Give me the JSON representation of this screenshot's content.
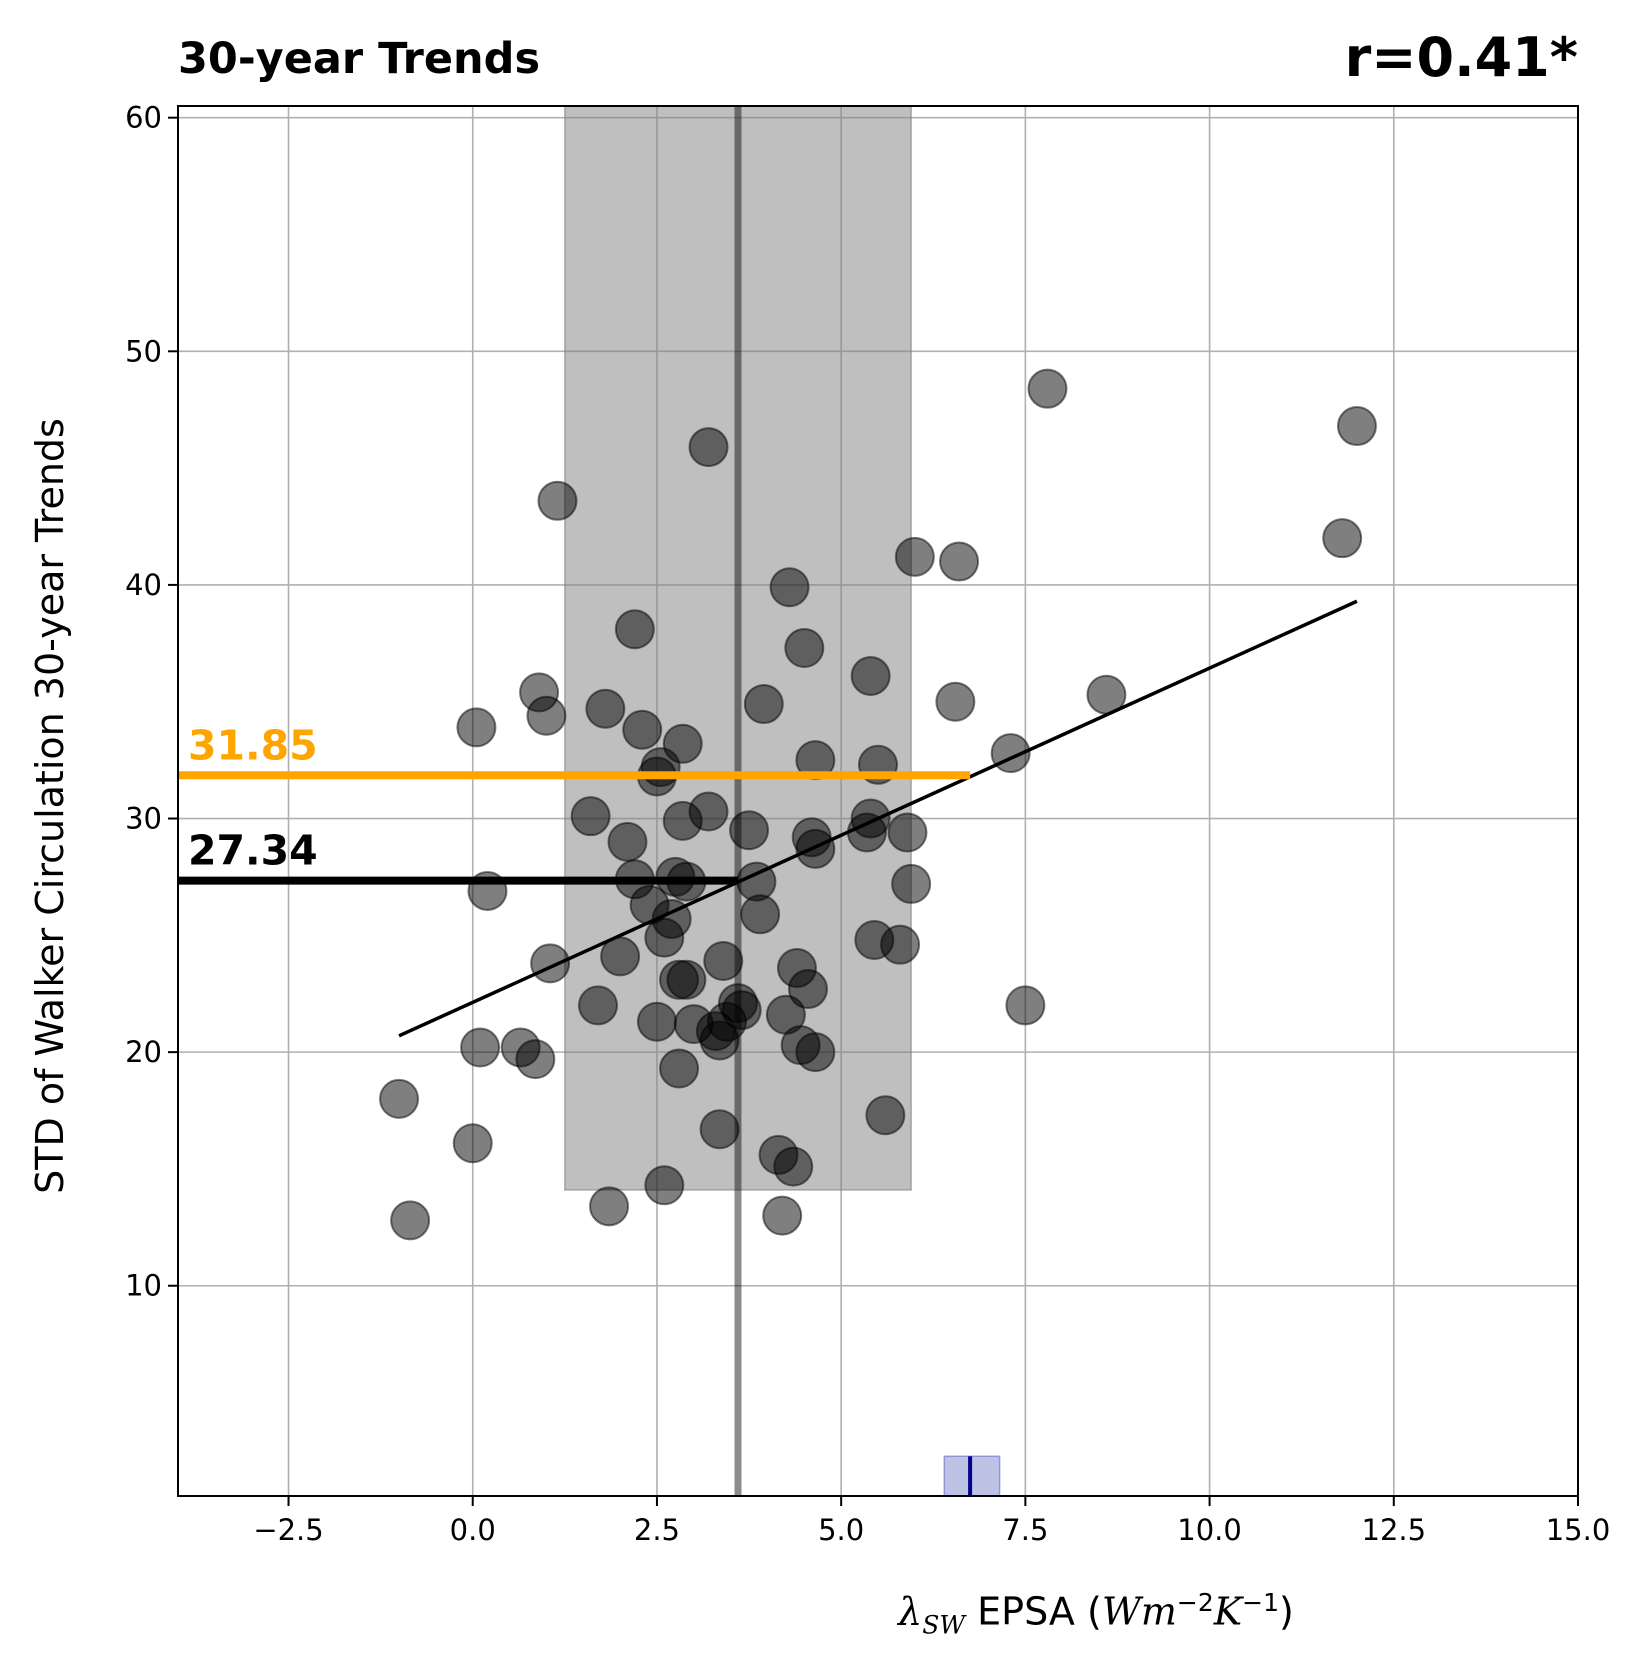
{
  "chart_data": {
    "type": "scatter",
    "title_left": "30-year Trends",
    "title_right": "r=0.41*",
    "ylabel": "STD of Walker Circulation 30-year Trends",
    "xlabel": {
      "symbol": "λ",
      "subscript": "SW",
      "text": " EPSA (",
      "unit_base": "Wm",
      "unit_exp1": "−2",
      "unit_mid": "K",
      "unit_exp2": "−1",
      "close": ")"
    },
    "xlim": [
      -4,
      15
    ],
    "ylim": [
      1,
      60.5
    ],
    "xticks": [
      -2.5,
      0.0,
      2.5,
      5.0,
      7.5,
      10.0,
      12.5,
      15.0
    ],
    "xtick_labels": [
      "−2.5",
      "0.0",
      "2.5",
      "5.0",
      "7.5",
      "10.0",
      "12.5",
      "15.0"
    ],
    "yticks": [
      10,
      20,
      30,
      40,
      50,
      60
    ],
    "ytick_labels": [
      "10",
      "20",
      "30",
      "40",
      "50",
      "60"
    ],
    "grid": true,
    "points": [
      [
        -1.0,
        18.0
      ],
      [
        -0.85,
        12.8
      ],
      [
        0.0,
        16.1
      ],
      [
        0.05,
        33.9
      ],
      [
        0.1,
        20.2
      ],
      [
        0.2,
        26.9
      ],
      [
        0.65,
        20.2
      ],
      [
        0.85,
        19.7
      ],
      [
        0.9,
        35.4
      ],
      [
        1.0,
        34.4
      ],
      [
        1.05,
        23.8
      ],
      [
        1.15,
        43.6
      ],
      [
        1.6,
        30.1
      ],
      [
        1.7,
        22.0
      ],
      [
        1.8,
        34.7
      ],
      [
        1.85,
        13.4
      ],
      [
        2.0,
        24.1
      ],
      [
        2.1,
        29.0
      ],
      [
        2.2,
        38.1
      ],
      [
        2.2,
        27.4
      ],
      [
        2.3,
        33.8
      ],
      [
        2.4,
        26.3
      ],
      [
        2.5,
        21.3
      ],
      [
        2.5,
        31.8
      ],
      [
        2.55,
        32.2
      ],
      [
        2.6,
        14.3
      ],
      [
        2.6,
        24.9
      ],
      [
        2.7,
        25.7
      ],
      [
        2.75,
        27.5
      ],
      [
        2.8,
        19.3
      ],
      [
        2.8,
        23.1
      ],
      [
        2.85,
        29.9
      ],
      [
        2.85,
        33.2
      ],
      [
        2.9,
        23.1
      ],
      [
        2.9,
        27.3
      ],
      [
        3.0,
        21.2
      ],
      [
        3.2,
        45.9
      ],
      [
        3.2,
        30.3
      ],
      [
        3.3,
        20.9
      ],
      [
        3.35,
        16.7
      ],
      [
        3.35,
        20.5
      ],
      [
        3.4,
        23.9
      ],
      [
        3.45,
        21.3
      ],
      [
        3.6,
        22.1
      ],
      [
        3.65,
        21.8
      ],
      [
        3.75,
        29.5
      ],
      [
        3.85,
        27.3
      ],
      [
        3.9,
        25.9
      ],
      [
        3.95,
        34.9
      ],
      [
        4.15,
        15.6
      ],
      [
        4.2,
        13.0
      ],
      [
        4.25,
        21.6
      ],
      [
        4.3,
        39.9
      ],
      [
        4.35,
        15.1
      ],
      [
        4.4,
        23.6
      ],
      [
        4.45,
        20.3
      ],
      [
        4.5,
        37.3
      ],
      [
        4.55,
        22.7
      ],
      [
        4.6,
        29.2
      ],
      [
        4.65,
        28.7
      ],
      [
        4.65,
        32.5
      ],
      [
        4.65,
        20.0
      ],
      [
        5.35,
        29.4
      ],
      [
        5.4,
        36.1
      ],
      [
        5.4,
        30.0
      ],
      [
        5.45,
        24.8
      ],
      [
        5.5,
        32.3
      ],
      [
        5.6,
        17.3
      ],
      [
        5.8,
        24.6
      ],
      [
        5.9,
        29.4
      ],
      [
        5.95,
        27.2
      ],
      [
        6.0,
        41.2
      ],
      [
        6.55,
        35.0
      ],
      [
        6.6,
        41.0
      ],
      [
        7.3,
        32.8
      ],
      [
        7.5,
        22.0
      ],
      [
        7.8,
        48.4
      ],
      [
        8.6,
        35.3
      ],
      [
        11.8,
        42.0
      ],
      [
        12.0,
        46.8
      ]
    ],
    "regression": {
      "x1": -1.0,
      "y1": 20.7,
      "x2": 12.0,
      "y2": 39.3
    },
    "shaded_band": {
      "x_from": 1.25,
      "x_to": 5.95,
      "y_from": 14.1,
      "y_to": 60.5
    },
    "vertical_line_x": 3.6,
    "observed_band": {
      "x_from": 6.4,
      "x_to": 7.15,
      "y_from": 1.0,
      "y_to": 2.7,
      "center_x": 6.75
    },
    "hlines": [
      {
        "label": "31.85",
        "y": 31.85,
        "x_to": 6.75,
        "color": "#ffa500"
      },
      {
        "label": "27.34",
        "y": 27.34,
        "x_to": 3.6,
        "color": "#000000"
      }
    ]
  }
}
